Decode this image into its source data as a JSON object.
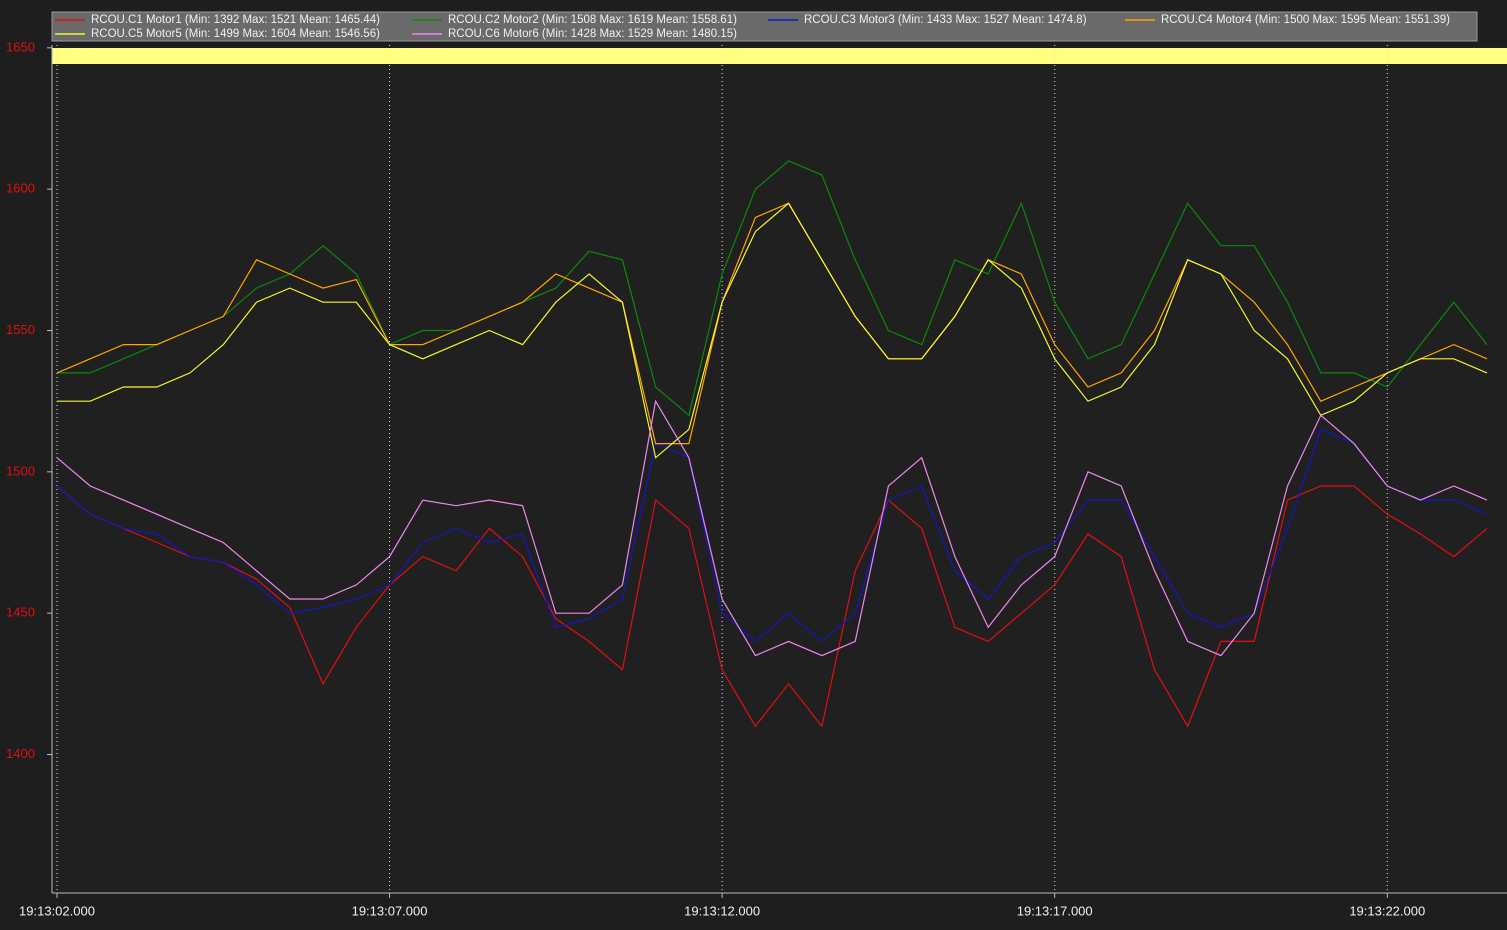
{
  "chart_data": {
    "type": "line",
    "x": [
      0,
      0.5,
      1,
      1.5,
      2,
      2.5,
      3,
      3.5,
      4,
      4.5,
      5,
      5.5,
      6,
      6.5,
      7,
      7.5,
      8,
      8.5,
      9,
      9.5,
      10,
      10.5,
      11,
      11.5,
      12,
      12.5,
      13,
      13.5,
      14,
      14.5,
      15,
      15.5,
      16,
      16.5,
      17,
      17.5,
      18,
      18.5,
      19,
      19.5,
      20,
      20.5,
      21,
      21.5
    ],
    "xlim": [
      -0.075,
      21.8
    ],
    "xticks": [
      {
        "value": 0,
        "label": "19:13:02.000"
      },
      {
        "value": 5,
        "label": "19:13:07.000"
      },
      {
        "value": 10,
        "label": "19:13:12.000"
      },
      {
        "value": 15,
        "label": "19:13:17.000"
      },
      {
        "value": 20,
        "label": "19:13:22.000"
      }
    ],
    "ylim": [
      1351,
      1651
    ],
    "yticks": [
      1400,
      1450,
      1500,
      1550,
      1600,
      1650
    ],
    "grid": "x",
    "legend": "top",
    "series": [
      {
        "name": "RCOU.C1 Motor1 (Min: 1392 Max: 1521 Mean: 1465.44)",
        "color": "#e01010",
        "values": [
          1495,
          1485,
          1480,
          1475,
          1470,
          1468,
          1462,
          1452,
          1425,
          1445,
          1460,
          1470,
          1465,
          1480,
          1470,
          1448,
          1440,
          1430,
          1490,
          1480,
          1430,
          1410,
          1425,
          1410,
          1465,
          1490,
          1480,
          1445,
          1440,
          1450,
          1460,
          1478,
          1470,
          1430,
          1410,
          1440,
          1440,
          1490,
          1495,
          1495,
          1485,
          1478,
          1470,
          1480
        ]
      },
      {
        "name": "RCOU.C2 Motor2 (Min: 1508 Max: 1619 Mean: 1558.61)",
        "color": "#0a8a0a",
        "values": [
          1535,
          1535,
          1540,
          1545,
          1550,
          1555,
          1565,
          1570,
          1580,
          1570,
          1545,
          1550,
          1550,
          1555,
          1560,
          1565,
          1578,
          1575,
          1530,
          1520,
          1570,
          1600,
          1610,
          1605,
          1575,
          1550,
          1545,
          1575,
          1570,
          1595,
          1560,
          1540,
          1545,
          1570,
          1595,
          1580,
          1580,
          1560,
          1535,
          1535,
          1530,
          1545,
          1560,
          1545
        ]
      },
      {
        "name": "RCOU.C3 Motor3 (Min: 1433 Max: 1527 Mean: 1474.8)",
        "color": "#1515c8",
        "values": [
          1495,
          1485,
          1480,
          1478,
          1470,
          1468,
          1460,
          1450,
          1452,
          1455,
          1460,
          1475,
          1480,
          1475,
          1478,
          1445,
          1448,
          1455,
          1510,
          1505,
          1450,
          1440,
          1450,
          1440,
          1450,
          1490,
          1495,
          1465,
          1455,
          1470,
          1475,
          1490,
          1490,
          1470,
          1450,
          1445,
          1450,
          1480,
          1515,
          1510,
          1495,
          1490,
          1490,
          1485
        ]
      },
      {
        "name": "RCOU.C4 Motor4 (Min: 1500 Max: 1595 Mean: 1551.39)",
        "color": "#ffa500",
        "values": [
          1535,
          1540,
          1545,
          1545,
          1550,
          1555,
          1575,
          1570,
          1565,
          1568,
          1545,
          1545,
          1550,
          1555,
          1560,
          1570,
          1565,
          1560,
          1510,
          1510,
          1560,
          1590,
          1595,
          1575,
          1555,
          1540,
          1540,
          1555,
          1575,
          1570,
          1545,
          1530,
          1535,
          1550,
          1575,
          1570,
          1560,
          1545,
          1525,
          1530,
          1535,
          1540,
          1545,
          1540
        ]
      },
      {
        "name": "RCOU.C5 Motor5 (Min: 1499 Max: 1604 Mean: 1546.56)",
        "color": "#f5f530",
        "values": [
          1525,
          1525,
          1530,
          1530,
          1535,
          1545,
          1560,
          1565,
          1560,
          1560,
          1545,
          1540,
          1545,
          1550,
          1545,
          1560,
          1570,
          1560,
          1505,
          1515,
          1560,
          1585,
          1595,
          1575,
          1555,
          1540,
          1540,
          1555,
          1575,
          1565,
          1540,
          1525,
          1530,
          1545,
          1575,
          1570,
          1550,
          1540,
          1520,
          1525,
          1535,
          1540,
          1540,
          1535
        ]
      },
      {
        "name": "RCOU.C6 Motor6 (Min: 1428 Max: 1529 Mean: 1480.15)",
        "color": "#ee88ee",
        "values": [
          1505,
          1495,
          1490,
          1485,
          1480,
          1475,
          1465,
          1455,
          1455,
          1460,
          1470,
          1490,
          1488,
          1490,
          1488,
          1450,
          1450,
          1460,
          1525,
          1505,
          1455,
          1435,
          1440,
          1435,
          1440,
          1495,
          1505,
          1470,
          1445,
          1460,
          1470,
          1500,
          1495,
          1465,
          1440,
          1435,
          1450,
          1495,
          1520,
          1510,
          1495,
          1490,
          1495,
          1490
        ]
      }
    ]
  }
}
